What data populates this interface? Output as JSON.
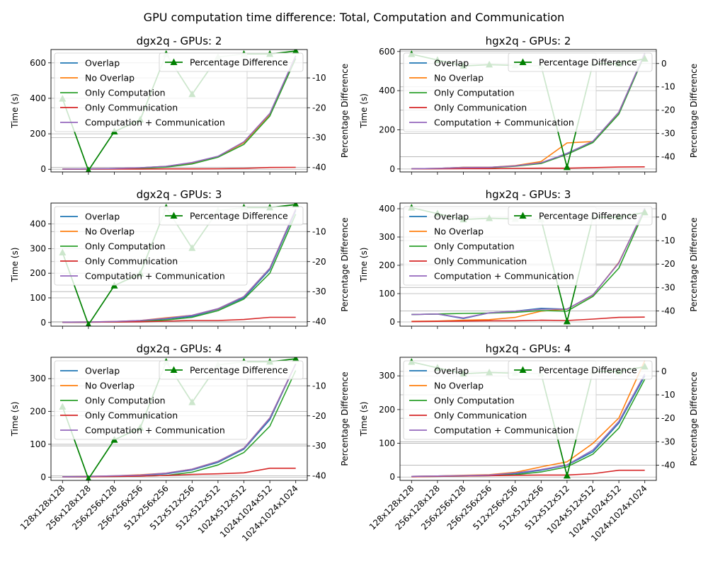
{
  "figure": {
    "suptitle": "GPU computation time difference: Total, Computation and Communication"
  },
  "chart_data": [
    {
      "type": "line",
      "title": "dgx2q - GPUs: 2",
      "x": [
        "128x128x128",
        "256x128x128",
        "256x256x128",
        "256x256x256",
        "512x256x256",
        "512x512x256",
        "512x512x512",
        "1024x512x512",
        "1024x1024x512",
        "1024x1024x1024"
      ],
      "ylabel": "Time (s)",
      "y2label": "Percentage Difference",
      "ylim": [
        -15,
        675
      ],
      "y2lim": [
        -41.5,
        -0.5
      ],
      "yticks": [
        0,
        200,
        400,
        600
      ],
      "y2ticks": [
        -40,
        -30,
        -20,
        -10
      ],
      "series": [
        {
          "name": "Overlap",
          "color": "#1f77b4",
          "values": [
            1,
            2,
            4,
            8,
            16,
            36,
            72,
            150,
            310,
            640
          ]
        },
        {
          "name": "No Overlap",
          "color": "#ff7f0e",
          "values": [
            1,
            2,
            4,
            8,
            16,
            36,
            72,
            150,
            310,
            640
          ]
        },
        {
          "name": "Only Computation",
          "color": "#2ca02c",
          "values": [
            0.5,
            1,
            2,
            5,
            12,
            30,
            68,
            140,
            300,
            625
          ]
        },
        {
          "name": "Only Communication",
          "color": "#d62728",
          "values": [
            0.5,
            0.5,
            1,
            1,
            2,
            2,
            3,
            5,
            10,
            11
          ]
        },
        {
          "name": "Computation + Communication",
          "color": "#9467bd",
          "values": [
            1,
            2,
            4,
            9,
            17,
            38,
            73,
            155,
            315,
            640
          ]
        },
        {
          "name": "Percentage Difference",
          "color": "#008000",
          "axis": "y2",
          "values": [
            -17,
            -41,
            -28,
            -24,
            -2,
            -15.5,
            -3,
            -2,
            -2,
            -1
          ]
        }
      ]
    },
    {
      "type": "line",
      "title": "hgx2q - GPUs: 2",
      "x": [
        "128x128x128",
        "256x128x128",
        "256x256x128",
        "256x256x256",
        "512x256x256",
        "512x512x256",
        "512x512x512",
        "1024x512x512",
        "1024x1024x512",
        "1024x1024x1024"
      ],
      "ylabel": "Time (s)",
      "y2label": "Percentage Difference",
      "ylim": [
        -15,
        610
      ],
      "y2lim": [
        -46.5,
        6
      ],
      "yticks": [
        0,
        200,
        400,
        600
      ],
      "y2ticks": [
        -40,
        -30,
        -20,
        -10,
        0
      ],
      "series": [
        {
          "name": "Overlap",
          "color": "#1f77b4",
          "values": [
            1,
            3,
            8,
            8,
            15,
            30,
            80,
            140,
            290,
            590
          ]
        },
        {
          "name": "No Overlap",
          "color": "#ff7f0e",
          "values": [
            1,
            3,
            8,
            8,
            17,
            38,
            133,
            140,
            290,
            590
          ]
        },
        {
          "name": "Only Computation",
          "color": "#2ca02c",
          "values": [
            0.5,
            2,
            5,
            6,
            14,
            28,
            75,
            135,
            280,
            585
          ]
        },
        {
          "name": "Only Communication",
          "color": "#d62728",
          "values": [
            0.5,
            1,
            2,
            2,
            3,
            4,
            4,
            7,
            10,
            11
          ]
        },
        {
          "name": "Computation + Communication",
          "color": "#9467bd",
          "values": [
            1,
            3,
            7,
            8,
            16,
            32,
            79,
            142,
            290,
            592
          ]
        },
        {
          "name": "Percentage Difference",
          "color": "#008000",
          "axis": "y2",
          "values": [
            4,
            1.5,
            -1,
            -0.5,
            -0.8,
            -1,
            -44.5,
            0,
            0,
            2
          ]
        }
      ]
    },
    {
      "type": "line",
      "title": "dgx2q - GPUs: 3",
      "x": [
        "128x128x128",
        "256x128x128",
        "256x256x128",
        "256x256x256",
        "512x256x256",
        "512x512x256",
        "512x512x512",
        "1024x512x512",
        "1024x1024x512",
        "1024x1024x1024"
      ],
      "ylabel": "Time (s)",
      "y2label": "Percentage Difference",
      "ylim": [
        -15,
        485
      ],
      "y2lim": [
        -41.5,
        -0.5
      ],
      "yticks": [
        0,
        100,
        200,
        300,
        400
      ],
      "y2ticks": [
        -40,
        -30,
        -20,
        -10
      ],
      "series": [
        {
          "name": "Overlap",
          "color": "#1f77b4",
          "values": [
            1,
            1,
            3,
            6,
            15,
            25,
            53,
            100,
            215,
            455
          ]
        },
        {
          "name": "No Overlap",
          "color": "#ff7f0e",
          "values": [
            1,
            2,
            4,
            8,
            19,
            29,
            55,
            105,
            220,
            460
          ]
        },
        {
          "name": "Only Computation",
          "color": "#2ca02c",
          "values": [
            0.5,
            1,
            2,
            4,
            10,
            21,
            48,
            95,
            200,
            440
          ]
        },
        {
          "name": "Only Communication",
          "color": "#d62728",
          "values": [
            0.5,
            1,
            2,
            3,
            5,
            8,
            8,
            12,
            21,
            21
          ]
        },
        {
          "name": "Computation + Communication",
          "color": "#9467bd",
          "values": [
            1,
            2,
            4,
            8,
            17,
            29,
            56,
            105,
            220,
            460
          ]
        },
        {
          "name": "Percentage Difference",
          "color": "#008000",
          "axis": "y2",
          "values": [
            -17,
            -41,
            -28,
            -24,
            -2,
            -15.5,
            -3,
            -2,
            -2,
            -1
          ]
        }
      ]
    },
    {
      "type": "line",
      "title": "hgx2q - GPUs: 3",
      "x": [
        "128x128x128",
        "256x128x128",
        "256x256x128",
        "256x256x256",
        "512x256x256",
        "512x512x256",
        "512x512x512",
        "1024x512x512",
        "1024x1024x512",
        "1024x1024x1024"
      ],
      "ylabel": "Time (s)",
      "y2label": "Percentage Difference",
      "ylim": [
        -15,
        420
      ],
      "y2lim": [
        -46.5,
        6
      ],
      "yticks": [
        0,
        100,
        200,
        300,
        400
      ],
      "y2ticks": [
        -40,
        -30,
        -20,
        -10,
        0
      ],
      "series": [
        {
          "name": "Overlap",
          "color": "#1f77b4",
          "values": [
            26,
            28,
            12,
            32,
            38,
            48,
            45,
            95,
            210,
            400
          ]
        },
        {
          "name": "No Overlap",
          "color": "#ff7f0e",
          "values": [
            2,
            3,
            6,
            8,
            16,
            38,
            45,
            95,
            210,
            400
          ]
        },
        {
          "name": "Only Computation",
          "color": "#2ca02c",
          "values": [
            26,
            28,
            30,
            31,
            34,
            40,
            38,
            90,
            190,
            395
          ]
        },
        {
          "name": "Only Communication",
          "color": "#d62728",
          "values": [
            1,
            2,
            3,
            4,
            4,
            6,
            5,
            10,
            16,
            17
          ]
        },
        {
          "name": "Computation + Communication",
          "color": "#9467bd",
          "values": [
            26,
            28,
            14,
            32,
            38,
            45,
            45,
            96,
            208,
            402
          ]
        },
        {
          "name": "Percentage Difference",
          "color": "#008000",
          "axis": "y2",
          "values": [
            4,
            1.5,
            -1,
            -0.5,
            -0.8,
            -1,
            -44.5,
            0,
            0,
            2
          ]
        }
      ]
    },
    {
      "type": "line",
      "title": "dgx2q - GPUs: 4",
      "x": [
        "128x128x128",
        "256x128x128",
        "256x256x128",
        "256x256x256",
        "512x256x256",
        "512x512x256",
        "512x512x512",
        "1024x512x512",
        "1024x1024x512",
        "1024x1024x1024"
      ],
      "ylabel": "Time (s)",
      "y2label": "Percentage Difference",
      "ylim": [
        -10,
        365
      ],
      "y2lim": [
        -41.5,
        -0.5
      ],
      "yticks": [
        0,
        100,
        200,
        300
      ],
      "y2ticks": [
        -40,
        -30,
        -20,
        -10
      ],
      "series": [
        {
          "name": "Overlap",
          "color": "#1f77b4",
          "values": [
            1,
            1,
            3,
            5,
            10,
            22,
            45,
            85,
            175,
            345
          ]
        },
        {
          "name": "No Overlap",
          "color": "#ff7f0e",
          "values": [
            1,
            2,
            4,
            7,
            12,
            24,
            48,
            88,
            180,
            345
          ]
        },
        {
          "name": "Only Computation",
          "color": "#2ca02c",
          "values": [
            0.5,
            1,
            2,
            3,
            5,
            15,
            37,
            75,
            155,
            325
          ]
        },
        {
          "name": "Only Communication",
          "color": "#d62728",
          "values": [
            0.5,
            1,
            2,
            3,
            5,
            8,
            10,
            13,
            27,
            27
          ]
        },
        {
          "name": "Computation + Communication",
          "color": "#9467bd",
          "values": [
            1,
            2,
            4,
            6,
            12,
            24,
            48,
            88,
            180,
            345
          ]
        },
        {
          "name": "Percentage Difference",
          "color": "#008000",
          "axis": "y2",
          "values": [
            -17,
            -41,
            -28,
            -24,
            -2,
            -15.5,
            -3,
            -2,
            -2,
            -1
          ]
        }
      ]
    },
    {
      "type": "line",
      "title": "hgx2q - GPUs: 4",
      "x": [
        "128x128x128",
        "256x128x128",
        "256x256x128",
        "256x256x256",
        "512x256x256",
        "512x512x256",
        "512x512x512",
        "1024x512x512",
        "1024x1024x512",
        "1024x1024x1024"
      ],
      "ylabel": "Time (s)",
      "y2label": "Percentage Difference",
      "ylim": [
        -10,
        355
      ],
      "y2lim": [
        -46.5,
        6
      ],
      "yticks": [
        0,
        100,
        200,
        300
      ],
      "y2ticks": [
        -40,
        -30,
        -20,
        -10,
        0
      ],
      "series": [
        {
          "name": "Overlap",
          "color": "#1f77b4",
          "values": [
            2,
            3,
            4,
            6,
            10,
            20,
            35,
            75,
            160,
            300
          ]
        },
        {
          "name": "No Overlap",
          "color": "#ff7f0e",
          "values": [
            2,
            3,
            5,
            7,
            14,
            30,
            45,
            100,
            175,
            345
          ]
        },
        {
          "name": "Only Computation",
          "color": "#2ca02c",
          "values": [
            1,
            2,
            3,
            4,
            7,
            15,
            30,
            68,
            145,
            290
          ]
        },
        {
          "name": "Only Communication",
          "color": "#d62728",
          "values": [
            1,
            2,
            3,
            4,
            5,
            6,
            6,
            10,
            20,
            20
          ]
        },
        {
          "name": "Computation + Communication",
          "color": "#9467bd",
          "values": [
            2,
            3,
            4,
            6,
            12,
            22,
            36,
            80,
            165,
            305
          ]
        },
        {
          "name": "Percentage Difference",
          "color": "#008000",
          "axis": "y2",
          "values": [
            4,
            1.5,
            -1,
            -0.5,
            -0.8,
            -1,
            -44.5,
            0,
            0,
            2
          ]
        }
      ]
    }
  ]
}
